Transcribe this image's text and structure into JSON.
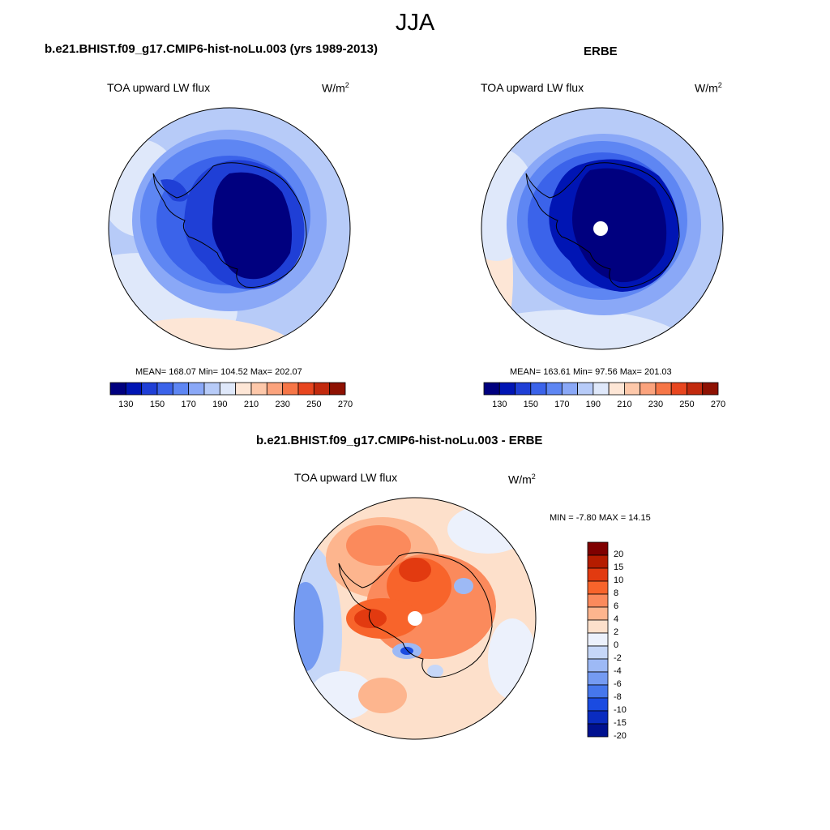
{
  "figure": {
    "season": "JJA"
  },
  "panel_model": {
    "title": "b.e21.BHIST.f09_g17.CMIP6-hist-noLu.003 (yrs 1989-2013)",
    "variable": "TOA upward LW flux",
    "units_base": "W/m",
    "units_exp": "2",
    "stats": "MEAN= 168.07  Min= 104.52  Max= 202.07",
    "colorbar_ticks": [
      "130",
      "150",
      "170",
      "190",
      "210",
      "230",
      "250",
      "270"
    ]
  },
  "panel_obs": {
    "title": "ERBE",
    "variable": "TOA upward LW flux",
    "units_base": "W/m",
    "units_exp": "2",
    "stats": "MEAN= 163.61  Min=  97.56  Max= 201.03",
    "colorbar_ticks": [
      "130",
      "150",
      "170",
      "190",
      "210",
      "230",
      "250",
      "270"
    ]
  },
  "panel_diff": {
    "title": "b.e21.BHIST.f09_g17.CMIP6-hist-noLu.003 - ERBE",
    "variable": "TOA upward LW flux",
    "units_base": "W/m",
    "units_exp": "2",
    "stats": "MIN =  -7.80 MAX =  14.15",
    "colorbar_ticks": [
      "20",
      "15",
      "10",
      "8",
      "6",
      "4",
      "2",
      "0",
      "-2",
      "-4",
      "-6",
      "-8",
      "-10",
      "-15",
      "-20"
    ]
  },
  "colors": {
    "abs_scale": [
      "#00007f",
      "#0015b4",
      "#1f3fd6",
      "#3b63ea",
      "#5e86f3",
      "#8aa8f7",
      "#b7cbf8",
      "#dfe8fa",
      "#fde6d6",
      "#fdc8aa",
      "#fba37d",
      "#f67647",
      "#e8461f",
      "#c22a0e",
      "#8e1102"
    ],
    "diff_scale": [
      "#7f0000",
      "#b51c00",
      "#e23a10",
      "#f8642b",
      "#fb8a5c",
      "#fdb58e",
      "#fde0cb",
      "#ecf1fc",
      "#c6d7f8",
      "#9db9f5",
      "#759bf2",
      "#4677ec",
      "#1a4be1",
      "#0a2cc0",
      "#00118f"
    ]
  }
}
